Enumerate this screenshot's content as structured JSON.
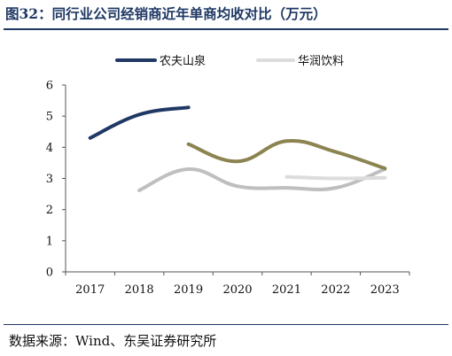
{
  "header": {
    "title": "图32：同行业公司经销商近年单商均收对比（万元）"
  },
  "footer": {
    "source": "数据来源：Wind、东吴证券研究所"
  },
  "colors": {
    "accent": "#1f3864",
    "nongfu": "#1f3864",
    "huarun": "#dcdcdc",
    "olive": "#8b8350",
    "gray": "#bfbfbf"
  },
  "chart_data": {
    "type": "line",
    "title": "",
    "xlabel": "",
    "ylabel": "",
    "categories": [
      "2017",
      "2018",
      "2019",
      "2020",
      "2021",
      "2022",
      "2023"
    ],
    "ylim": [
      0,
      6
    ],
    "yticks": [
      "0",
      "1",
      "2",
      "3",
      "4",
      "5",
      "6"
    ],
    "grid": false,
    "legend_position": "top",
    "series": [
      {
        "name": "农夫山泉",
        "color": "#1f3864",
        "values": [
          4.3,
          5.05,
          5.28,
          null,
          null,
          null,
          null
        ]
      },
      {
        "name": "华润饮料",
        "color": "#dcdcdc",
        "values": [
          null,
          null,
          null,
          null,
          3.05,
          3.0,
          3.02
        ]
      },
      {
        "name": "",
        "color": "#8b8350",
        "values": [
          null,
          null,
          4.1,
          3.55,
          4.2,
          3.85,
          3.32
        ]
      },
      {
        "name": "",
        "color": "#bfbfbf",
        "values": [
          null,
          2.62,
          3.3,
          2.75,
          2.7,
          2.7,
          3.3
        ]
      }
    ]
  }
}
